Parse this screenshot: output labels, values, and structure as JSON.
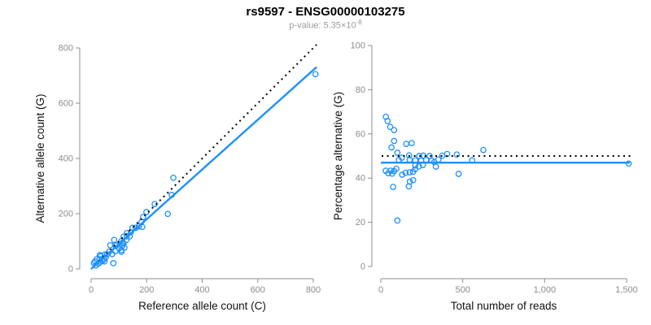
{
  "header": {
    "title": "rs9597 - ENSG00000103275",
    "pvalue_label": "p-value: ",
    "pvalue_mantissa": "5.35×10",
    "pvalue_exponent": "-8"
  },
  "colors": {
    "accent_blue": "#1E90FF",
    "line_black": "#000000",
    "axis_gray": "#8c8c8c",
    "tick_label_gray": "#8c8c8c",
    "axis_title_black": "#111111",
    "subtitle_gray": "#9a9a9a"
  },
  "chart_data": [
    {
      "type": "scatter",
      "name": "allele-count-scatter",
      "xlabel": "Reference allele count (C)",
      "ylabel": "Alternative allele count (G)",
      "xlim": [
        0,
        820
      ],
      "ylim": [
        0,
        820
      ],
      "xticks": [
        0,
        200,
        400,
        600,
        800
      ],
      "xtick_labels": [
        "0",
        "200",
        "400",
        "600",
        "800"
      ],
      "yticks": [
        0,
        200,
        400,
        600,
        800
      ],
      "ytick_labels": [
        "0",
        "200",
        "400",
        "600",
        "800"
      ],
      "grid": false,
      "legend": "none",
      "point_source": {
        "x": "ref",
        "y": "alt"
      },
      "lines": [
        {
          "name": "identity-line",
          "style": "dotted",
          "color": "black",
          "x1": 0,
          "y1": 0,
          "x2": 812,
          "y2": 812
        },
        {
          "name": "fit-line",
          "style": "solid",
          "color": "blue",
          "x1": 0,
          "y1": 0,
          "x2": 812,
          "y2": 731
        }
      ]
    },
    {
      "type": "scatter",
      "name": "percentage-scatter",
      "xlabel": "Total number of reads",
      "ylabel": "Percentage alternative (G)",
      "xlim": [
        0,
        1550
      ],
      "ylim": [
        0,
        100
      ],
      "xticks": [
        0,
        500,
        1000,
        1500
      ],
      "xtick_labels": [
        "0",
        "500",
        "1,000",
        "1,500"
      ],
      "yticks": [
        0,
        20,
        40,
        60,
        80,
        100
      ],
      "ytick_labels": [
        "0",
        "20",
        "40",
        "60",
        "80",
        "100"
      ],
      "grid": false,
      "legend": "none",
      "point_source": {
        "x": "ref+alt",
        "y": "alt/(ref+alt)*100"
      },
      "lines": [
        {
          "name": "expected-50pct-line",
          "style": "dotted",
          "color": "black",
          "x1": 5,
          "y1": 50,
          "x2": 1540,
          "y2": 50
        },
        {
          "name": "fit-line",
          "style": "solid",
          "color": "blue",
          "x1": 0,
          "y1": 47,
          "x2": 1520,
          "y2": 47
        }
      ]
    }
  ],
  "samples": {
    "ref_alt_pairs": [
      [
        10,
        21
      ],
      [
        14,
        27
      ],
      [
        21,
        36
      ],
      [
        31,
        50
      ],
      [
        35,
        46
      ],
      [
        30,
        35
      ],
      [
        69,
        86
      ],
      [
        83,
        105
      ],
      [
        49,
        52
      ],
      [
        65,
        63
      ],
      [
        57,
        53
      ],
      [
        86,
        87
      ],
      [
        91,
        85
      ],
      [
        109,
        101
      ],
      [
        117,
        117
      ],
      [
        128,
        118
      ],
      [
        129,
        130
      ],
      [
        143,
        133
      ],
      [
        149,
        149
      ],
      [
        161,
        149
      ],
      [
        172,
        154
      ],
      [
        181,
        170
      ],
      [
        187,
        188
      ],
      [
        199,
        206
      ],
      [
        17,
        13
      ],
      [
        26,
        19
      ],
      [
        34,
        26
      ],
      [
        40,
        29
      ],
      [
        46,
        35
      ],
      [
        53,
        42
      ],
      [
        76,
        54
      ],
      [
        87,
        64
      ],
      [
        101,
        75
      ],
      [
        112,
        84
      ],
      [
        48,
        27
      ],
      [
        109,
        68
      ],
      [
        109,
        62
      ],
      [
        114,
        96
      ],
      [
        127,
        105
      ],
      [
        139,
        118
      ],
      [
        184,
        152
      ],
      [
        80,
        21
      ],
      [
        117,
        92
      ],
      [
        120,
        77
      ],
      [
        229,
        235
      ],
      [
        276,
        199
      ],
      [
        290,
        268
      ],
      [
        296,
        330
      ],
      [
        808,
        705
      ]
    ]
  }
}
